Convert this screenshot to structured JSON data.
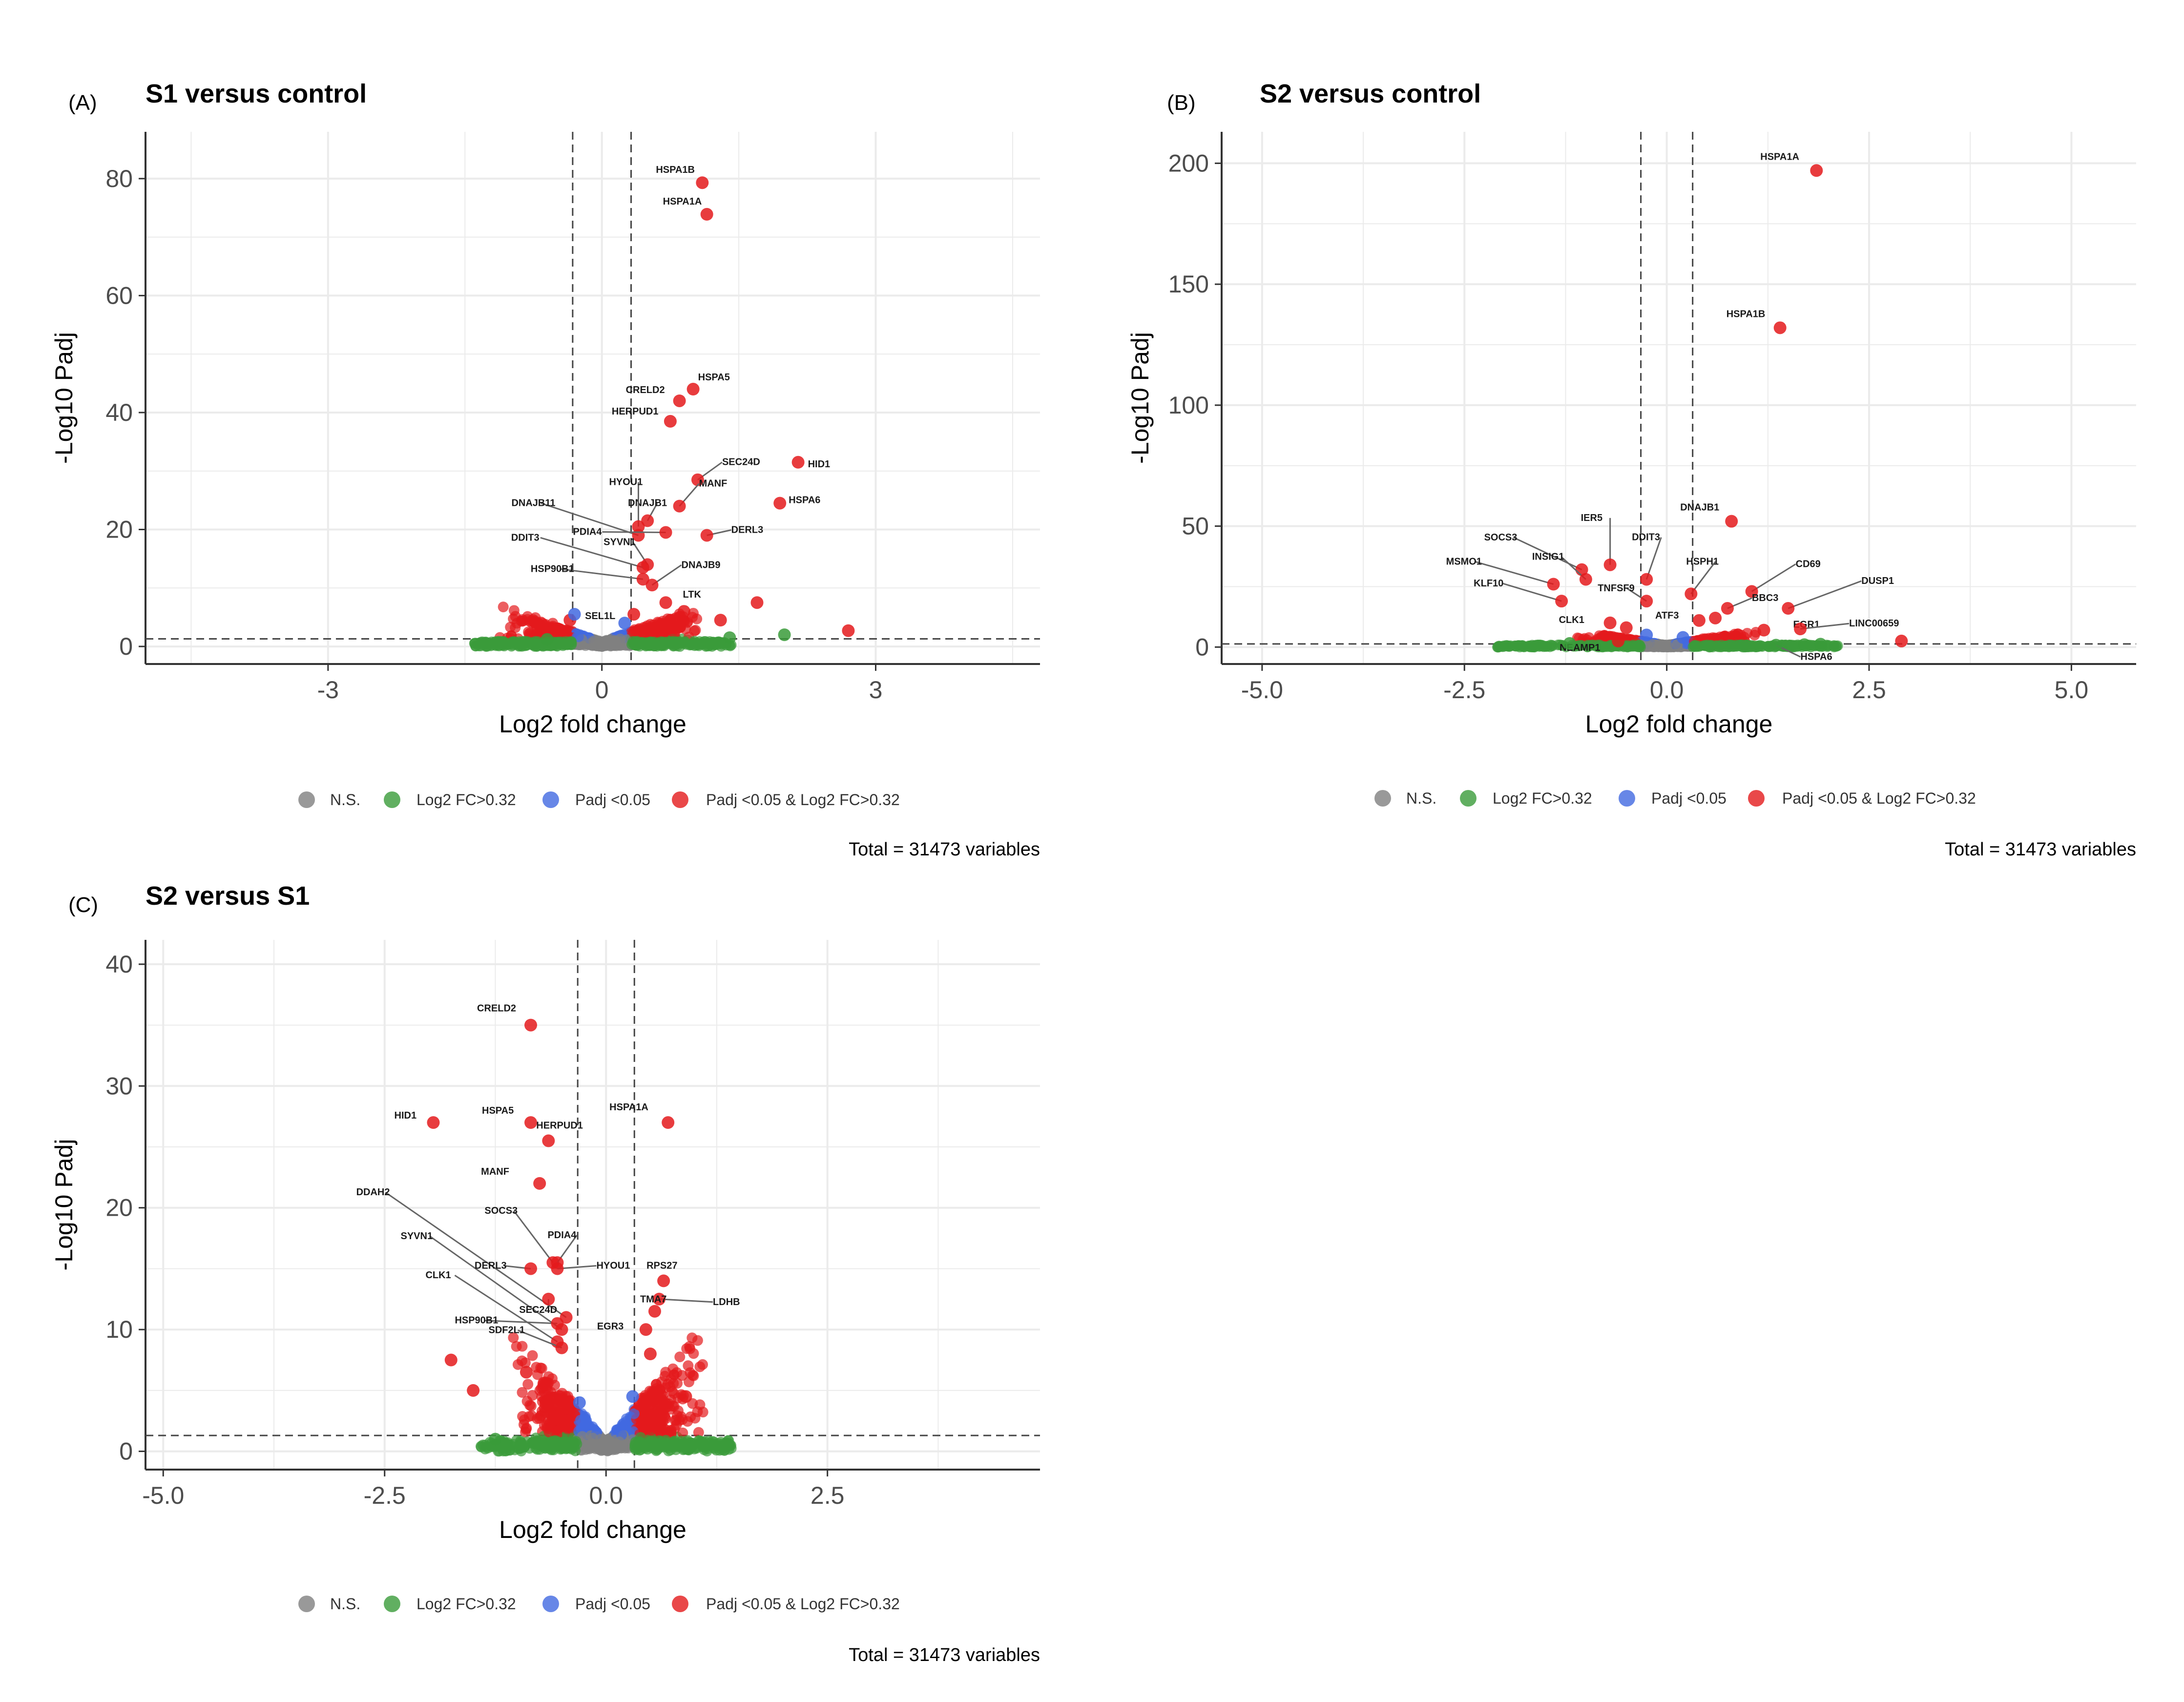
{
  "chart_data": [
    {
      "type": "scatter",
      "panel_label": "(A)",
      "title": "S1 versus control",
      "xlabel": "Log2 fold change",
      "ylabel": "-Log10 Padj",
      "xlim": [
        -5.0,
        4.8
      ],
      "ylim": [
        -3,
        88
      ],
      "x_ticks": [
        -3,
        0,
        3
      ],
      "x_tick_labels": [
        "-3",
        "0",
        "3"
      ],
      "y_ticks": [
        0,
        20,
        40,
        60,
        80
      ],
      "y_tick_labels": [
        "0",
        "20",
        "40",
        "60",
        "80"
      ],
      "fc_cutoff": 0.32,
      "p_cutoff_log": 1.3,
      "grid": true,
      "caption": "Total = 31473 variables",
      "legend": {
        "position": "bottom",
        "entries": [
          {
            "key": "ns",
            "color": "#808080",
            "label": "N.S."
          },
          {
            "key": "fc",
            "color": "#3a9b3a",
            "label": "Log2 FC>0.32"
          },
          {
            "key": "p",
            "color": "#4169e1",
            "label": "Padj <0.05"
          },
          {
            "key": "both",
            "color": "#e41a1c",
            "label": "Padj <0.05 & Log2 FC>0.32"
          }
        ]
      },
      "points": [
        {
          "x": 1.1,
          "y": 79.3,
          "c": "both",
          "label": "HSPA1B"
        },
        {
          "x": 1.15,
          "y": 73.9,
          "c": "both",
          "label": "HSPA1A"
        },
        {
          "x": 1.0,
          "y": 44.0,
          "c": "both",
          "label": "HSPA5"
        },
        {
          "x": 0.85,
          "y": 42.0,
          "c": "both",
          "label": "CRELD2"
        },
        {
          "x": 0.75,
          "y": 38.5,
          "c": "both",
          "label": "HERPUD1"
        },
        {
          "x": 2.15,
          "y": 31.5,
          "c": "both",
          "label": "HID1"
        },
        {
          "x": 1.05,
          "y": 28.5,
          "c": "both",
          "label": "SEC24D"
        },
        {
          "x": 1.95,
          "y": 24.5,
          "c": "both",
          "label": "HSPA6"
        },
        {
          "x": 0.85,
          "y": 24.0,
          "c": "both",
          "label": "MANF"
        },
        {
          "x": 0.5,
          "y": 21.5,
          "c": "both",
          "label": "DNAJB1"
        },
        {
          "x": 0.4,
          "y": 20.5,
          "c": "both",
          "label": "HYOU1"
        },
        {
          "x": 0.4,
          "y": 19.0,
          "c": "both",
          "label": "DNAJB11"
        },
        {
          "x": 1.15,
          "y": 19.0,
          "c": "both",
          "label": "DERL3"
        },
        {
          "x": 0.7,
          "y": 19.5,
          "c": "both",
          "label": "PDIA4"
        },
        {
          "x": 0.5,
          "y": 14.0,
          "c": "both",
          "label": "SYVN1"
        },
        {
          "x": 0.45,
          "y": 13.5,
          "c": "both",
          "label": "DDIT3"
        },
        {
          "x": 0.45,
          "y": 11.5,
          "c": "both",
          "label": "HSP90B1"
        },
        {
          "x": 0.55,
          "y": 10.5,
          "c": "both",
          "label": "DNAJB9"
        },
        {
          "x": 0.7,
          "y": 7.5,
          "c": "both",
          "label": "LTK"
        },
        {
          "x": 0.35,
          "y": 5.5,
          "c": "both",
          "label": "SEL1L"
        },
        {
          "x": 1.7,
          "y": 7.5,
          "c": "both"
        },
        {
          "x": 2.7,
          "y": 2.7,
          "c": "both"
        },
        {
          "x": -0.35,
          "y": 4.5,
          "c": "both"
        },
        {
          "x": 0.9,
          "y": 6.0,
          "c": "both"
        },
        {
          "x": 1.3,
          "y": 4.5,
          "c": "both"
        },
        {
          "x": -0.3,
          "y": 5.5,
          "c": "p"
        },
        {
          "x": 0.25,
          "y": 4.0,
          "c": "p"
        },
        {
          "x": 2.0,
          "y": 2.0,
          "c": "fc"
        },
        {
          "x": 1.4,
          "y": 1.5,
          "c": "fc"
        },
        {
          "x": -0.6,
          "y": 1.2,
          "c": "fc"
        }
      ]
    },
    {
      "type": "scatter",
      "panel_label": "(B)",
      "title": "S2 versus control",
      "xlabel": "Log2 fold change",
      "ylabel": "-Log10 Padj",
      "xlim": [
        -5.5,
        5.8
      ],
      "ylim": [
        -7,
        213
      ],
      "x_ticks": [
        -5.0,
        -2.5,
        0.0,
        2.5,
        5.0
      ],
      "x_tick_labels": [
        "-5.0",
        "-2.5",
        "0.0",
        "2.5",
        "5.0"
      ],
      "y_ticks": [
        0,
        50,
        100,
        150,
        200
      ],
      "y_tick_labels": [
        "0",
        "50",
        "100",
        "150",
        "200"
      ],
      "fc_cutoff": 0.32,
      "p_cutoff_log": 1.3,
      "grid": true,
      "caption": "Total = 31473 variables",
      "legend": {
        "position": "bottom",
        "entries": [
          {
            "key": "ns",
            "color": "#808080",
            "label": "N.S."
          },
          {
            "key": "fc",
            "color": "#3a9b3a",
            "label": "Log2 FC>0.32"
          },
          {
            "key": "p",
            "color": "#4169e1",
            "label": "Padj <0.05"
          },
          {
            "key": "both",
            "color": "#e41a1c",
            "label": "Padj <0.05 & Log2 FC>0.32"
          }
        ]
      },
      "points": [
        {
          "x": 1.85,
          "y": 197,
          "c": "both",
          "label": "HSPA1A"
        },
        {
          "x": 1.4,
          "y": 132,
          "c": "both",
          "label": "HSPA1B"
        },
        {
          "x": 0.8,
          "y": 52,
          "c": "both",
          "label": "DNAJB1"
        },
        {
          "x": -1.05,
          "y": 32,
          "c": "both",
          "label": "SOCS3"
        },
        {
          "x": -0.7,
          "y": 34,
          "c": "both",
          "label": "IER5"
        },
        {
          "x": -0.25,
          "y": 28,
          "c": "both",
          "label": "DDIT3"
        },
        {
          "x": -1.0,
          "y": 28,
          "c": "both",
          "label": "INSIG1"
        },
        {
          "x": 0.3,
          "y": 22,
          "c": "both",
          "label": "HSPH1"
        },
        {
          "x": 1.05,
          "y": 23,
          "c": "both",
          "label": "CD69"
        },
        {
          "x": -1.4,
          "y": 26,
          "c": "both",
          "label": "MSMO1"
        },
        {
          "x": -0.25,
          "y": 19,
          "c": "both",
          "label": "TNFSF9"
        },
        {
          "x": -1.3,
          "y": 19,
          "c": "both",
          "label": "KLF10"
        },
        {
          "x": 0.75,
          "y": 16,
          "c": "both",
          "label": "BBC3"
        },
        {
          "x": 1.5,
          "y": 16,
          "c": "both",
          "label": "DUSP1"
        },
        {
          "x": -0.7,
          "y": 10,
          "c": "both",
          "label": "CLK1"
        },
        {
          "x": 0.4,
          "y": 11,
          "c": "both",
          "label": "ATF3"
        },
        {
          "x": 1.2,
          "y": 7,
          "c": "both",
          "label": "EGR1"
        },
        {
          "x": 1.65,
          "y": 7.5,
          "c": "both",
          "label": "LINC00659"
        },
        {
          "x": -0.6,
          "y": 2.5,
          "c": "both",
          "label": "NEAMP1"
        },
        {
          "x": 1.35,
          "y": 0.8,
          "c": "fc",
          "label": "HSPA6"
        },
        {
          "x": 2.9,
          "y": 2.5,
          "c": "both"
        },
        {
          "x": 0.6,
          "y": 12,
          "c": "both"
        },
        {
          "x": -0.5,
          "y": 8,
          "c": "both"
        },
        {
          "x": -0.25,
          "y": 5,
          "c": "p"
        },
        {
          "x": 0.2,
          "y": 4,
          "c": "p"
        },
        {
          "x": -1.2,
          "y": 1.5,
          "c": "fc"
        },
        {
          "x": 1.7,
          "y": 1.0,
          "c": "fc"
        },
        {
          "x": 1.9,
          "y": 1.2,
          "c": "fc"
        }
      ]
    },
    {
      "type": "scatter",
      "panel_label": "(C)",
      "title": "S2 versus S1",
      "xlabel": "Log2 fold change",
      "ylabel": "-Log10 Padj",
      "xlim": [
        -5.2,
        4.9
      ],
      "ylim": [
        -1.5,
        42
      ],
      "x_ticks": [
        -5.0,
        -2.5,
        0.0,
        2.5
      ],
      "x_tick_labels": [
        "-5.0",
        "-2.5",
        "0.0",
        "2.5"
      ],
      "y_ticks": [
        0,
        10,
        20,
        30,
        40
      ],
      "y_tick_labels": [
        "0",
        "10",
        "20",
        "30",
        "40"
      ],
      "fc_cutoff": 0.32,
      "p_cutoff_log": 1.3,
      "grid": true,
      "caption": "Total = 31473 variables",
      "legend": {
        "position": "bottom",
        "entries": [
          {
            "key": "ns",
            "color": "#808080",
            "label": "N.S."
          },
          {
            "key": "fc",
            "color": "#3a9b3a",
            "label": "Log2 FC>0.32"
          },
          {
            "key": "p",
            "color": "#4169e1",
            "label": "Padj <0.05"
          },
          {
            "key": "both",
            "color": "#e41a1c",
            "label": "Padj <0.05 & Log2 FC>0.32"
          }
        ]
      },
      "points": [
        {
          "x": -0.85,
          "y": 35.0,
          "c": "both",
          "label": "CRELD2"
        },
        {
          "x": -1.95,
          "y": 27.0,
          "c": "both",
          "label": "HID1"
        },
        {
          "x": -0.85,
          "y": 27.0,
          "c": "both",
          "label": "HSPA5"
        },
        {
          "x": -0.65,
          "y": 25.5,
          "c": "both",
          "label": "HERPUD1"
        },
        {
          "x": 0.7,
          "y": 27.0,
          "c": "both",
          "label": "HSPA1A"
        },
        {
          "x": -0.75,
          "y": 22.0,
          "c": "both",
          "label": "MANF"
        },
        {
          "x": -0.45,
          "y": 11.0,
          "c": "both",
          "label": "DDAH2"
        },
        {
          "x": -0.5,
          "y": 10.0,
          "c": "both",
          "label": "SYVN1"
        },
        {
          "x": -0.55,
          "y": 9.0,
          "c": "both",
          "label": "CLK1"
        },
        {
          "x": -0.6,
          "y": 15.5,
          "c": "both",
          "label": "SOCS3"
        },
        {
          "x": -0.55,
          "y": 15.5,
          "c": "both",
          "label": "PDIA4"
        },
        {
          "x": -0.55,
          "y": 15.0,
          "c": "both",
          "label": "HYOU1"
        },
        {
          "x": -0.85,
          "y": 15.0,
          "c": "both",
          "label": "DERL3"
        },
        {
          "x": -0.65,
          "y": 12.5,
          "c": "both",
          "label": "SEC24D"
        },
        {
          "x": -0.55,
          "y": 10.5,
          "c": "both",
          "label": "HSP90B1"
        },
        {
          "x": -0.5,
          "y": 8.5,
          "c": "both",
          "label": "SDF2L1"
        },
        {
          "x": 0.65,
          "y": 14.0,
          "c": "both",
          "label": "RPS27"
        },
        {
          "x": 0.6,
          "y": 12.5,
          "c": "both",
          "label": "LDHB"
        },
        {
          "x": 0.55,
          "y": 11.5,
          "c": "both",
          "label": "TMA7"
        },
        {
          "x": 0.45,
          "y": 10.0,
          "c": "both",
          "label": "EGR3"
        },
        {
          "x": -1.75,
          "y": 7.5,
          "c": "both"
        },
        {
          "x": -1.5,
          "y": 5.0,
          "c": "both"
        },
        {
          "x": -0.9,
          "y": 6.5,
          "c": "both"
        },
        {
          "x": 0.9,
          "y": 4.5,
          "c": "both"
        },
        {
          "x": 0.5,
          "y": 8.0,
          "c": "both"
        },
        {
          "x": -0.3,
          "y": 4.0,
          "c": "p"
        },
        {
          "x": 0.3,
          "y": 4.5,
          "c": "p"
        },
        {
          "x": -1.25,
          "y": 1.0,
          "c": "fc"
        }
      ]
    }
  ]
}
